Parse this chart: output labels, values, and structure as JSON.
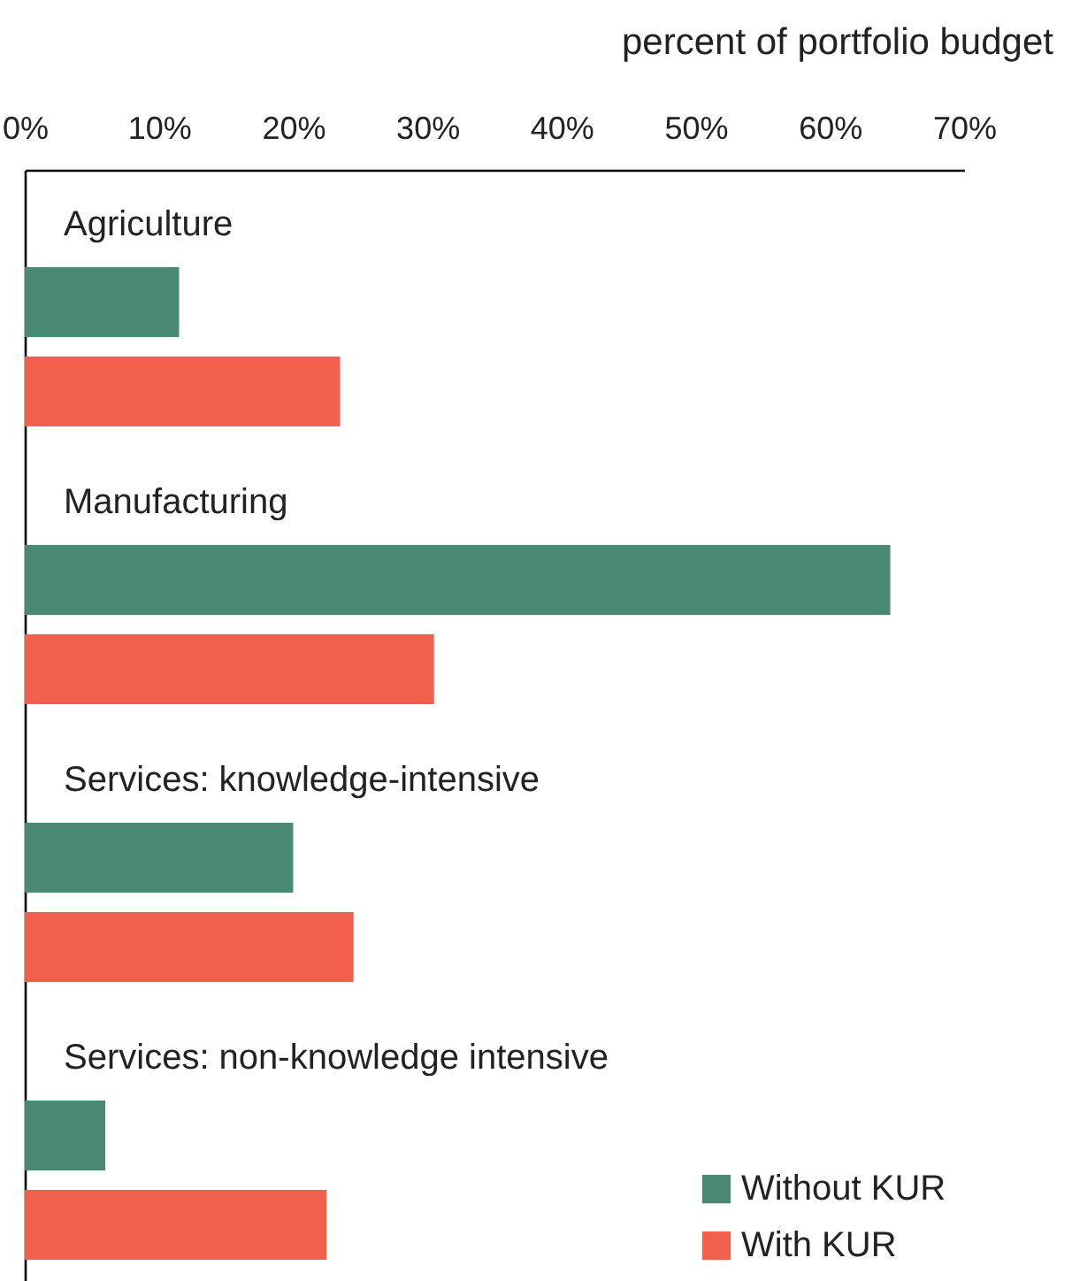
{
  "chart_data": {
    "type": "bar",
    "orientation": "horizontal",
    "xlabel": "percent of portfolio budget",
    "categories": [
      "Agriculture",
      "Manufacturing",
      "Services: knowledge-intensive",
      "Services: non-knowledge intensive"
    ],
    "series": [
      {
        "name": "Without KUR",
        "color": "#4a8a75",
        "values": [
          11.5,
          64.5,
          20,
          6
        ]
      },
      {
        "name": "With KUR",
        "color": "#f0604d",
        "values": [
          23.5,
          30.5,
          24.5,
          22.5
        ]
      }
    ],
    "xlim": [
      0,
      70
    ],
    "xticks": [
      {
        "value": 0,
        "label": "0%"
      },
      {
        "value": 10,
        "label": "10%"
      },
      {
        "value": 20,
        "label": "20%"
      },
      {
        "value": 30,
        "label": "30%"
      },
      {
        "value": 40,
        "label": "40%"
      },
      {
        "value": 50,
        "label": "50%"
      },
      {
        "value": 60,
        "label": "60%"
      },
      {
        "value": 70,
        "label": "70%"
      }
    ],
    "legend": "bottom right",
    "grid": false
  }
}
